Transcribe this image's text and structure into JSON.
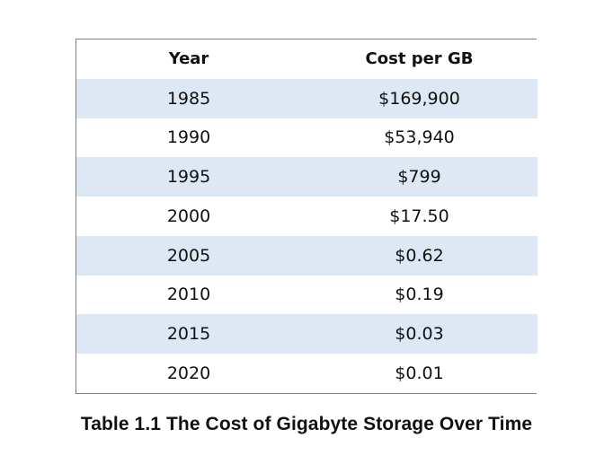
{
  "table": {
    "headers": {
      "year": "Year",
      "cost": "Cost per GB"
    },
    "rows": [
      {
        "year": "1985",
        "cost": "$169,900"
      },
      {
        "year": "1990",
        "cost": "$53,940"
      },
      {
        "year": "1995",
        "cost": "$799"
      },
      {
        "year": "2000",
        "cost": "$17.50"
      },
      {
        "year": "2005",
        "cost": "$0.62"
      },
      {
        "year": "2010",
        "cost": "$0.19"
      },
      {
        "year": "2015",
        "cost": "$0.03"
      },
      {
        "year": "2020",
        "cost": "$0.01"
      }
    ]
  },
  "caption": "Table 1.1 The Cost of Gigabyte Storage Over Time",
  "colors": {
    "stripe": "#dde8f4",
    "border": "#7f7f7f"
  }
}
